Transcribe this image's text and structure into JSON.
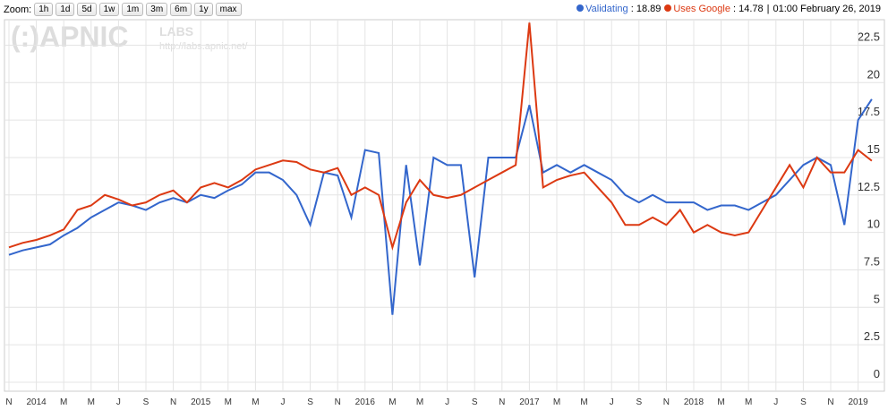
{
  "toolbar": {
    "zoom_label": "Zoom:",
    "zoom_buttons": [
      "1h",
      "1d",
      "5d",
      "1w",
      "1m",
      "3m",
      "6m",
      "1y",
      "max"
    ]
  },
  "watermark": {
    "logo": "(:)APNIC",
    "labs": "LABS",
    "url": "http://labs.apnic.net/"
  },
  "chart_data": {
    "type": "line",
    "legend_time": "01:00 February 26, 2019",
    "x": [
      "2013-11",
      "2013-12",
      "2014-01",
      "2014-02",
      "2014-03",
      "2014-04",
      "2014-05",
      "2014-06",
      "2014-07",
      "2014-08",
      "2014-09",
      "2014-10",
      "2014-11",
      "2014-12",
      "2015-01",
      "2015-02",
      "2015-03",
      "2015-04",
      "2015-05",
      "2015-06",
      "2015-07",
      "2015-08",
      "2015-09",
      "2015-10",
      "2015-11",
      "2015-12",
      "2016-01",
      "2016-02",
      "2016-03",
      "2016-04",
      "2016-05",
      "2016-06",
      "2016-07",
      "2016-08",
      "2016-09",
      "2016-10",
      "2016-11",
      "2016-12",
      "2017-01",
      "2017-02",
      "2017-03",
      "2017-04",
      "2017-05",
      "2017-06",
      "2017-07",
      "2017-08",
      "2017-09",
      "2017-10",
      "2017-11",
      "2017-12",
      "2018-01",
      "2018-02",
      "2018-03",
      "2018-04",
      "2018-05",
      "2018-06",
      "2018-07",
      "2018-08",
      "2018-09",
      "2018-10",
      "2018-11",
      "2018-12",
      "2019-01",
      "2019-02"
    ],
    "series": [
      {
        "name": "Validating",
        "color": "#3366cc",
        "current_value": 18.89,
        "values": [
          8.5,
          8.8,
          9.0,
          9.2,
          9.8,
          10.3,
          11.0,
          11.5,
          12.0,
          11.8,
          11.5,
          12.0,
          12.3,
          12.0,
          12.5,
          12.3,
          12.8,
          13.2,
          14.0,
          14.0,
          13.5,
          12.5,
          10.5,
          14.0,
          13.8,
          11.0,
          15.5,
          15.3,
          4.5,
          14.5,
          7.8,
          15.0,
          14.5,
          14.5,
          7.0,
          15.0,
          15.0,
          15.0,
          18.5,
          14.0,
          14.5,
          14.0,
          14.5,
          14.0,
          13.5,
          12.5,
          12.0,
          12.5,
          12.0,
          12.0,
          12.0,
          11.5,
          11.8,
          11.8,
          11.5,
          12.0,
          12.5,
          13.5,
          14.5,
          15.0,
          14.5,
          10.5,
          17.5,
          18.89
        ]
      },
      {
        "name": "Uses Google",
        "color": "#dc3912",
        "current_value": 14.78,
        "values": [
          9.0,
          9.3,
          9.5,
          9.8,
          10.2,
          11.5,
          11.8,
          12.5,
          12.2,
          11.8,
          12.0,
          12.5,
          12.8,
          12.0,
          13.0,
          13.3,
          13.0,
          13.5,
          14.2,
          14.5,
          14.8,
          14.7,
          14.2,
          14.0,
          14.3,
          12.5,
          13.0,
          12.5,
          9.0,
          12.0,
          13.5,
          12.5,
          12.3,
          12.5,
          13.0,
          13.5,
          14.0,
          14.5,
          24.0,
          13.0,
          13.5,
          13.8,
          14.0,
          13.0,
          12.0,
          10.5,
          10.5,
          11.0,
          10.5,
          11.5,
          10.0,
          10.5,
          10.0,
          9.8,
          10.0,
          11.5,
          13.0,
          14.5,
          13.0,
          15.0,
          14.0,
          14.0,
          15.5,
          14.78
        ]
      }
    ],
    "ylim": [
      -0.6,
      24.2
    ],
    "yticks": [
      0,
      2.5,
      5,
      7.5,
      10,
      12.5,
      15,
      17.5,
      20,
      22.5
    ],
    "xticks": [
      {
        "value": "2013-11",
        "label": "N"
      },
      {
        "value": "2014-01",
        "label": "2014"
      },
      {
        "value": "2014-03",
        "label": "M"
      },
      {
        "value": "2014-05",
        "label": "M"
      },
      {
        "value": "2014-07",
        "label": "J"
      },
      {
        "value": "2014-09",
        "label": "S"
      },
      {
        "value": "2014-11",
        "label": "N"
      },
      {
        "value": "2015-01",
        "label": "2015"
      },
      {
        "value": "2015-03",
        "label": "M"
      },
      {
        "value": "2015-05",
        "label": "M"
      },
      {
        "value": "2015-07",
        "label": "J"
      },
      {
        "value": "2015-09",
        "label": "S"
      },
      {
        "value": "2015-11",
        "label": "N"
      },
      {
        "value": "2016-01",
        "label": "2016"
      },
      {
        "value": "2016-03",
        "label": "M"
      },
      {
        "value": "2016-05",
        "label": "M"
      },
      {
        "value": "2016-07",
        "label": "J"
      },
      {
        "value": "2016-09",
        "label": "S"
      },
      {
        "value": "2016-11",
        "label": "N"
      },
      {
        "value": "2017-01",
        "label": "2017"
      },
      {
        "value": "2017-03",
        "label": "M"
      },
      {
        "value": "2017-05",
        "label": "M"
      },
      {
        "value": "2017-07",
        "label": "J"
      },
      {
        "value": "2017-09",
        "label": "S"
      },
      {
        "value": "2017-11",
        "label": "N"
      },
      {
        "value": "2018-01",
        "label": "2018"
      },
      {
        "value": "2018-03",
        "label": "M"
      },
      {
        "value": "2018-05",
        "label": "M"
      },
      {
        "value": "2018-07",
        "label": "J"
      },
      {
        "value": "2018-09",
        "label": "S"
      },
      {
        "value": "2018-11",
        "label": "N"
      },
      {
        "value": "2019-01",
        "label": "2019"
      }
    ],
    "grid": true
  }
}
